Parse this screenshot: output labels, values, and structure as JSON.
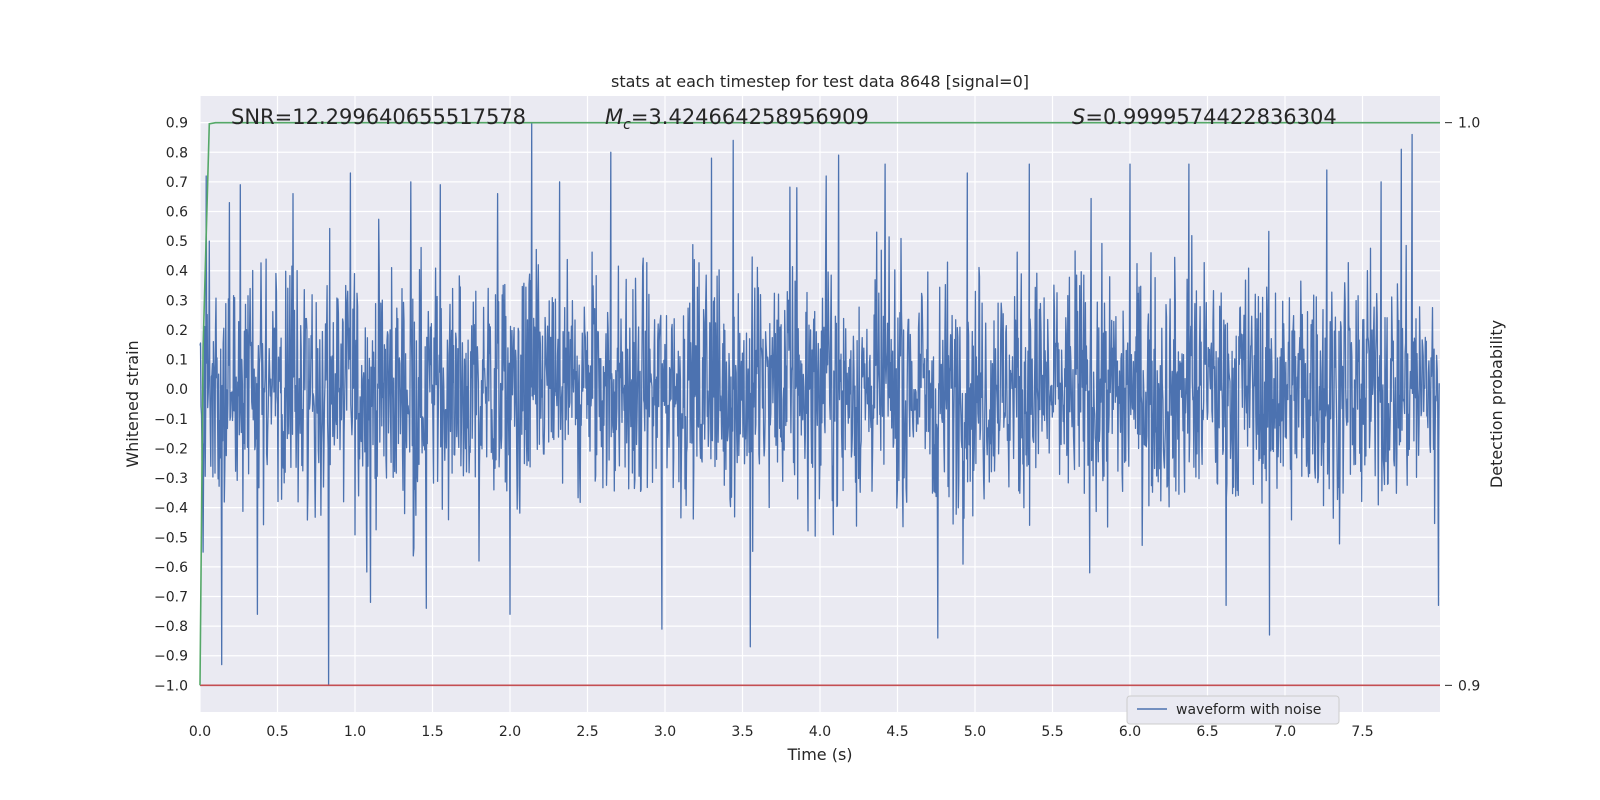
{
  "chart_data": {
    "type": "line",
    "title": "stats at each timestep for test data 8648 [signal=0]",
    "xlabel": "Time (s)",
    "ylabel": "Whitened strain",
    "y2label": "Detection probability",
    "xlim": [
      0.0,
      8.0
    ],
    "ylim": [
      -1.09,
      0.99
    ],
    "y2lim": [
      0.9,
      1.0
    ],
    "x_ticks": [
      "0.0",
      "0.5",
      "1.0",
      "1.5",
      "2.0",
      "2.5",
      "3.0",
      "3.5",
      "4.0",
      "4.5",
      "5.0",
      "5.5",
      "6.0",
      "6.5",
      "7.0",
      "7.5"
    ],
    "y_ticks": [
      "−1.0",
      "−0.9",
      "−0.8",
      "−0.7",
      "−0.6",
      "−0.5",
      "−0.4",
      "−0.3",
      "−0.2",
      "−0.1",
      "0.0",
      "0.1",
      "0.2",
      "0.3",
      "0.4",
      "0.5",
      "0.6",
      "0.7",
      "0.8",
      "0.9"
    ],
    "y2_ticks": [
      "0.9",
      "1.0"
    ],
    "grid": true,
    "legend": {
      "position": "lower-right",
      "entries": [
        "waveform with noise"
      ]
    },
    "annotations": {
      "snr_label": "SNR=12.299640655517578",
      "mc_symbol": "M",
      "mc_sub": "c",
      "mc_value": "=3.424664258956909",
      "s_symbol": "S",
      "s_value": "=0.9999574422836304"
    },
    "series": [
      {
        "name": "waveform with noise",
        "axis": "left",
        "color": "#4c72b0",
        "description": "Dense whitened-strain noise, mostly within ±0.4 with spikes",
        "core_amplitude": 0.42,
        "spikes": [
          [
            0.02,
            -0.55
          ],
          [
            0.06,
            0.5
          ],
          [
            0.14,
            -0.93
          ],
          [
            0.19,
            0.63
          ],
          [
            0.26,
            0.69
          ],
          [
            0.37,
            -0.76
          ],
          [
            0.6,
            0.66
          ],
          [
            0.83,
            -1.0
          ],
          [
            0.97,
            0.73
          ],
          [
            1.1,
            -0.72
          ],
          [
            1.36,
            0.7
          ],
          [
            1.46,
            -0.74
          ],
          [
            1.55,
            0.69
          ],
          [
            1.8,
            -0.58
          ],
          [
            1.92,
            0.66
          ],
          [
            2.0,
            -0.76
          ],
          [
            2.14,
            0.9
          ],
          [
            2.32,
            0.7
          ],
          [
            2.65,
            0.8
          ],
          [
            2.98,
            -0.81
          ],
          [
            3.3,
            0.78
          ],
          [
            3.44,
            0.84
          ],
          [
            3.55,
            -0.87
          ],
          [
            3.85,
            0.68
          ],
          [
            4.04,
            0.72
          ],
          [
            4.12,
            0.79
          ],
          [
            4.42,
            0.76
          ],
          [
            4.76,
            -0.84
          ],
          [
            4.95,
            0.73
          ],
          [
            5.35,
            0.76
          ],
          [
            5.74,
            -0.62
          ],
          [
            6.0,
            0.76
          ],
          [
            6.38,
            0.76
          ],
          [
            6.62,
            -0.73
          ],
          [
            6.9,
            -0.83
          ],
          [
            7.27,
            0.74
          ],
          [
            7.62,
            0.7
          ],
          [
            7.75,
            0.81
          ],
          [
            7.82,
            0.86
          ],
          [
            7.99,
            -0.73
          ]
        ]
      },
      {
        "name": "detection probability",
        "axis": "right",
        "color": "#55a868",
        "x": [
          0.0,
          0.02,
          0.06,
          0.1,
          0.15,
          8.0
        ],
        "values": [
          0.9,
          0.96,
          0.9998,
          1.0,
          1.0,
          1.0
        ]
      },
      {
        "name": "threshold",
        "axis": "left",
        "color": "#c44e52",
        "x": [
          0.0,
          8.0
        ],
        "values": [
          -1.0,
          -1.0
        ]
      }
    ]
  }
}
